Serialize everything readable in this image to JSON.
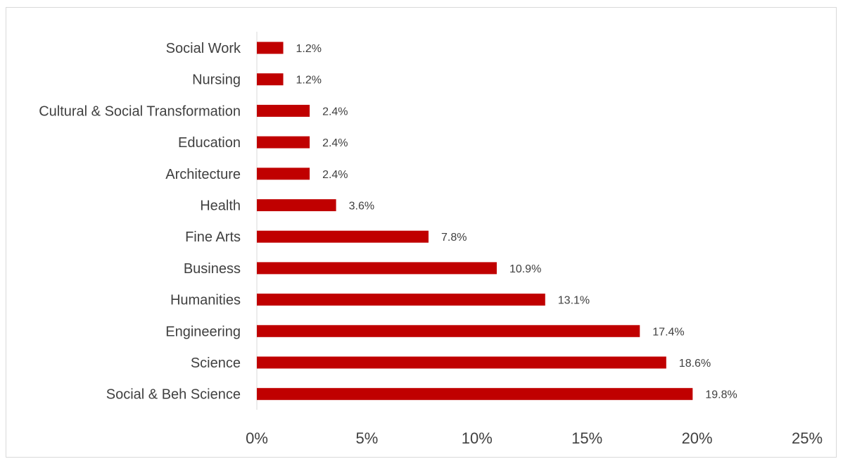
{
  "chart_data": {
    "type": "bar",
    "orientation": "horizontal",
    "categories": [
      "Social Work",
      "Nursing",
      "Cultural & Social Transformation",
      "Education",
      "Architecture",
      "Health",
      "Fine Arts",
      "Business",
      "Humanities",
      "Engineering",
      "Science",
      "Social & Beh Science"
    ],
    "values": [
      1.2,
      1.2,
      2.4,
      2.4,
      2.4,
      3.6,
      7.8,
      10.9,
      13.1,
      17.4,
      18.6,
      19.8
    ],
    "data_labels": [
      "1.2%",
      "1.2%",
      "2.4%",
      "2.4%",
      "2.4%",
      "3.6%",
      "7.8%",
      "10.9%",
      "13.1%",
      "17.4%",
      "18.6%",
      "19.8%"
    ],
    "xlim": [
      0,
      25
    ],
    "x_ticks": [
      0,
      5,
      10,
      15,
      20,
      25
    ],
    "x_tick_labels": [
      "0%",
      "5%",
      "10%",
      "15%",
      "20%",
      "25%"
    ],
    "title": "",
    "xlabel": "",
    "ylabel": "",
    "grid": false,
    "legend": "none",
    "bar_color": "#C00000"
  }
}
